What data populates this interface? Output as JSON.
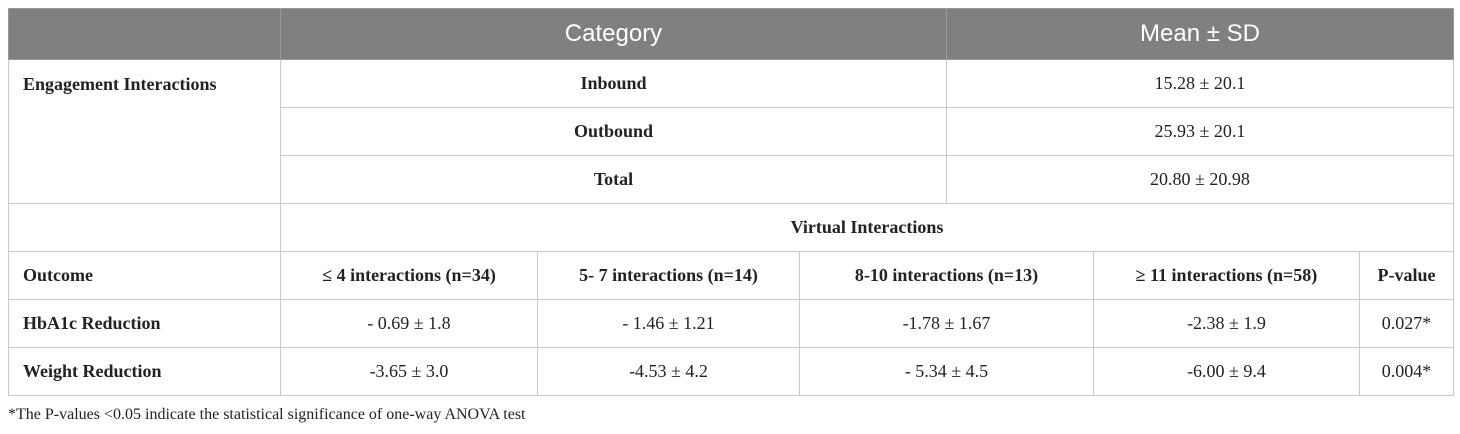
{
  "header": {
    "category": "Category",
    "mean_sd": "Mean ± SD"
  },
  "engagement": {
    "label": "Engagement Interactions",
    "rows": [
      {
        "category": "Inbound",
        "value": "15.28 ± 20.1"
      },
      {
        "category": "Outbound",
        "value": "25.93 ± 20.1"
      },
      {
        "category": "Total",
        "value": "20.80 ± 20.98"
      }
    ]
  },
  "virtual": {
    "title": "Virtual Interactions",
    "columns": [
      "Outcome",
      "≤ 4 interactions (n=34)",
      "5- 7 interactions (n=14)",
      "8-10 interactions (n=13)",
      "≥ 11 interactions (n=58)",
      "P-value"
    ],
    "rows": [
      {
        "outcome": "HbA1c Reduction",
        "values": [
          "- 0.69 ± 1.8",
          "- 1.46 ± 1.21",
          "-1.78 ± 1.67",
          "-2.38 ± 1.9"
        ],
        "p": "0.027*"
      },
      {
        "outcome": "Weight Reduction",
        "values": [
          "-3.65 ± 3.0",
          "-4.53 ± 4.2",
          "- 5.34 ± 4.5",
          "-6.00 ± 9.4"
        ],
        "p": "0.004*"
      }
    ]
  },
  "footnote": "*The P-values <0.05 indicate the statistical significance of one-way ANOVA test"
}
